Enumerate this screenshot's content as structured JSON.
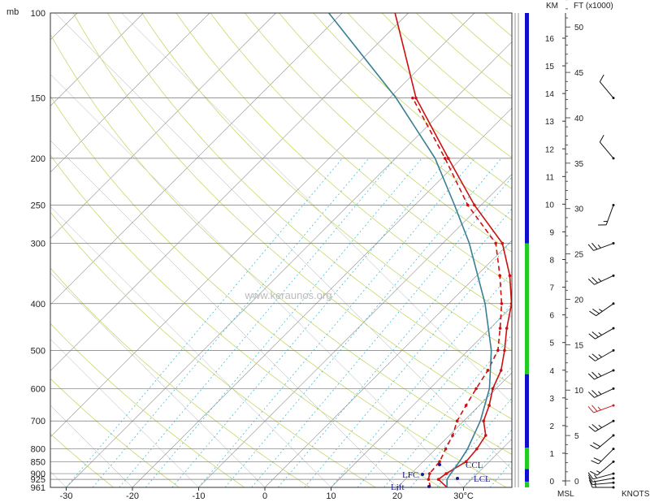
{
  "chart_data": {
    "type": "line",
    "title": "",
    "units": {
      "pressure": "mb",
      "temperature": "30°C",
      "height_km": "KM",
      "height_ft": "FT (x1000)",
      "wind": "KNOTS",
      "base": "MSL"
    },
    "watermark": "www.keraunos.org",
    "pressure_ticks": [
      100,
      150,
      200,
      250,
      300,
      400,
      500,
      600,
      700,
      800,
      850,
      900,
      925,
      961
    ],
    "temperature_ticks": [
      "-30",
      "-20",
      "-10",
      "0",
      "10",
      "20",
      "30°C"
    ],
    "temperature_ticks_values": [
      -30,
      -20,
      -10,
      0,
      10,
      20,
      30
    ],
    "skew_deg_per_px": 0.1223,
    "series": [
      {
        "name": "temperature",
        "color": "#cc1111",
        "style": "solid",
        "points": [
          [
            961,
            27.5
          ],
          [
            925,
            25.0
          ],
          [
            900,
            25.3
          ],
          [
            850,
            26.5
          ],
          [
            800,
            26.2
          ],
          [
            750,
            25.5
          ],
          [
            700,
            23.0
          ],
          [
            650,
            21.5
          ],
          [
            600,
            19.5
          ],
          [
            550,
            18.0
          ],
          [
            500,
            15.5
          ],
          [
            450,
            12.5
          ],
          [
            400,
            9.5
          ],
          [
            350,
            5.0
          ],
          [
            300,
            -1.0
          ],
          [
            250,
            -11.0
          ],
          [
            200,
            -22.0
          ],
          [
            150,
            -36.0
          ],
          [
            100,
            -52.0
          ]
        ]
      },
      {
        "name": "dewpoint",
        "color": "#cc1111",
        "style": "dashed",
        "points": [
          [
            961,
            25.0
          ],
          [
            925,
            23.5
          ],
          [
            900,
            22.8
          ],
          [
            850,
            22.5
          ],
          [
            800,
            21.5
          ],
          [
            750,
            20.5
          ],
          [
            700,
            19.0
          ],
          [
            650,
            18.0
          ],
          [
            600,
            17.0
          ],
          [
            550,
            16.0
          ],
          [
            500,
            14.5
          ],
          [
            450,
            11.5
          ],
          [
            400,
            8.0
          ],
          [
            350,
            3.5
          ],
          [
            300,
            -2.0
          ],
          [
            250,
            -12.0
          ],
          [
            200,
            -22.5
          ],
          [
            150,
            -36.5
          ]
        ]
      },
      {
        "name": "parcel",
        "color": "#3a7f95",
        "style": "solid",
        "points": [
          [
            961,
            27.5
          ],
          [
            925,
            26.3
          ],
          [
            900,
            26.0
          ],
          [
            850,
            25.5
          ],
          [
            800,
            24.8
          ],
          [
            700,
            22.5
          ],
          [
            600,
            19.0
          ],
          [
            500,
            13.5
          ],
          [
            400,
            5.5
          ],
          [
            300,
            -6.0
          ],
          [
            250,
            -14.0
          ],
          [
            200,
            -24.0
          ],
          [
            150,
            -39.0
          ],
          [
            100,
            -62.0
          ]
        ]
      }
    ],
    "levels": [
      {
        "label": "CCL",
        "p": 850
      },
      {
        "label": "LFC",
        "p": 900
      },
      {
        "label": "LCL",
        "p": 910
      },
      {
        "label": "Lift",
        "p": 950
      }
    ],
    "km_ticks": [
      "0",
      "1",
      "2",
      "3",
      "4",
      "5",
      "6",
      "7",
      "8",
      "9",
      "10",
      "11",
      "12",
      "13",
      "14",
      "15",
      "16"
    ],
    "ft_ticks": [
      "0",
      "5",
      "10",
      "15",
      "20",
      "25",
      "30",
      "35",
      "40",
      "45",
      "50"
    ],
    "wind_barbs": [
      {
        "p": 961,
        "dir": 270,
        "speed": 15
      },
      {
        "p": 940,
        "dir": 265,
        "speed": 15
      },
      {
        "p": 920,
        "dir": 260,
        "speed": 10
      },
      {
        "p": 900,
        "dir": 255,
        "speed": 15
      },
      {
        "p": 850,
        "dir": 230,
        "speed": 15
      },
      {
        "p": 800,
        "dir": 225,
        "speed": 20
      },
      {
        "p": 750,
        "dir": 230,
        "speed": 20
      },
      {
        "p": 700,
        "dir": 240,
        "speed": 25
      },
      {
        "p": 650,
        "dir": 250,
        "speed": 25,
        "highlight": true
      },
      {
        "p": 600,
        "dir": 245,
        "speed": 25
      },
      {
        "p": 550,
        "dir": 245,
        "speed": 25
      },
      {
        "p": 500,
        "dir": 240,
        "speed": 25
      },
      {
        "p": 450,
        "dir": 240,
        "speed": 25
      },
      {
        "p": 400,
        "dir": 235,
        "speed": 25
      },
      {
        "p": 350,
        "dir": 245,
        "speed": 25
      },
      {
        "p": 300,
        "dir": 250,
        "speed": 25
      },
      {
        "p": 250,
        "dir": 200,
        "speed": 15
      },
      {
        "p": 200,
        "dir": 320,
        "speed": 10
      },
      {
        "p": 150,
        "dir": 320,
        "speed": 10
      }
    ],
    "moisture_bar": [
      {
        "from": 961,
        "to": 935,
        "color": "#22cc22"
      },
      {
        "from": 935,
        "to": 880,
        "color": "#1010cc"
      },
      {
        "from": 880,
        "to": 795,
        "color": "#22cc22"
      },
      {
        "from": 795,
        "to": 560,
        "color": "#1010cc"
      },
      {
        "from": 560,
        "to": 300,
        "color": "#22cc22"
      },
      {
        "from": 300,
        "to": 100,
        "color": "#1010cc"
      }
    ],
    "grid": true
  }
}
